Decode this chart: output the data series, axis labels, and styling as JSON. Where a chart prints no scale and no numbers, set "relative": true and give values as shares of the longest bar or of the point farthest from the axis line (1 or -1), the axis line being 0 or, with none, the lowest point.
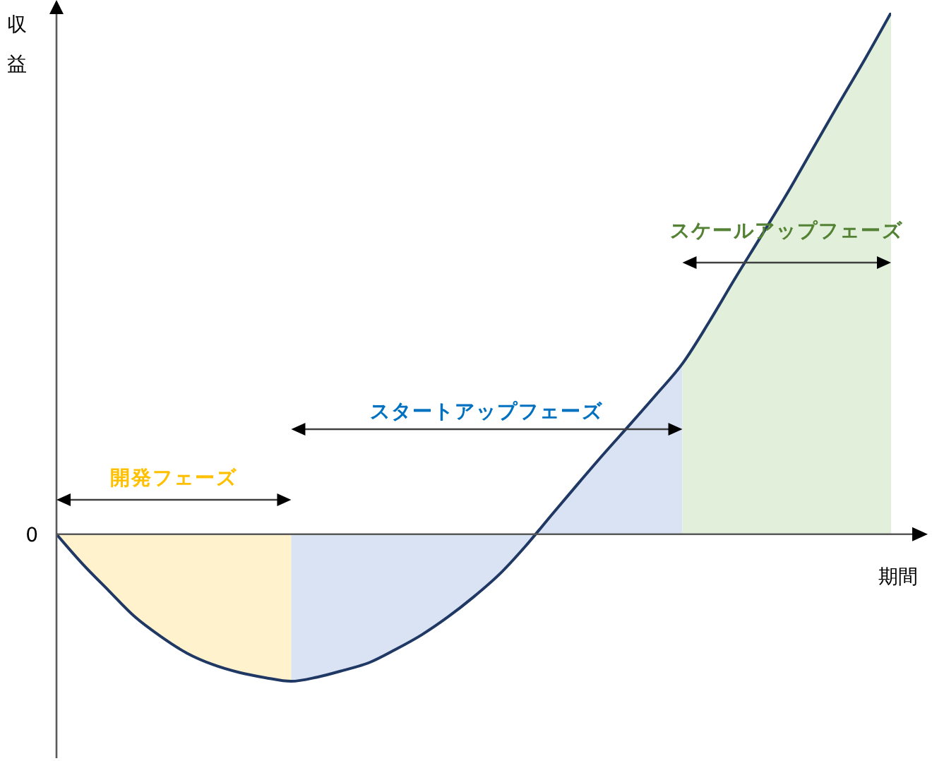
{
  "chart_data": {
    "type": "area",
    "xlabel": "期間",
    "ylabel": "収益",
    "relative": true,
    "tick_labels": false,
    "categories": [
      null,
      null,
      null,
      null,
      null,
      null,
      null,
      null,
      null,
      null,
      null,
      null,
      null,
      null,
      null,
      null,
      null,
      null,
      null,
      null,
      null,
      null,
      null,
      null,
      null,
      null,
      null,
      null,
      null,
      null,
      null,
      null,
      null
    ],
    "annotations": [
      "開発フェーズ",
      "スタートアップフェーズ",
      "スケールアップフェーズ",
      "0"
    ],
    "series": [
      {
        "type": "line",
        "color": "#1f3864",
        "values": [
          0,
          -0.057,
          -0.108,
          -0.158,
          -0.196,
          -0.228,
          -0.25,
          -0.265,
          -0.275,
          -0.282,
          -0.274,
          -0.261,
          -0.246,
          -0.221,
          -0.193,
          -0.159,
          -0.12,
          -0.076,
          -0.022,
          0.038,
          0.097,
          0.155,
          0.211,
          0.268,
          0.327,
          0.405,
          0.489,
          0.57,
          0.652,
          0.739,
          0.826,
          0.911,
          1
        ]
      },
      {
        "color": "#fff2cc",
        "values": [
          0,
          -0.057,
          -0.108,
          -0.158,
          -0.196,
          -0.228,
          -0.25,
          -0.265,
          -0.275,
          -0.282,
          null,
          null,
          null,
          null,
          null,
          null,
          null,
          null,
          null,
          null,
          null,
          null,
          null,
          null,
          null,
          null,
          null,
          null,
          null,
          null,
          null,
          null,
          null
        ]
      },
      {
        "color": "#dae3f3",
        "values": [
          null,
          null,
          null,
          null,
          null,
          null,
          null,
          null,
          null,
          -0.282,
          -0.274,
          -0.261,
          -0.246,
          -0.221,
          -0.193,
          -0.159,
          -0.12,
          -0.076,
          -0.022,
          0.038,
          0.097,
          0.155,
          0.211,
          0.268,
          0.327,
          null,
          null,
          null,
          null,
          null,
          null,
          null,
          null
        ]
      },
      {
        "color": "#e2efda",
        "values": [
          null,
          null,
          null,
          null,
          null,
          null,
          null,
          null,
          null,
          null,
          null,
          null,
          null,
          null,
          null,
          null,
          null,
          null,
          null,
          null,
          null,
          null,
          null,
          null,
          0.327,
          0.405,
          0.489,
          0.57,
          0.652,
          0.739,
          0.826,
          0.911,
          1
        ]
      }
    ]
  }
}
